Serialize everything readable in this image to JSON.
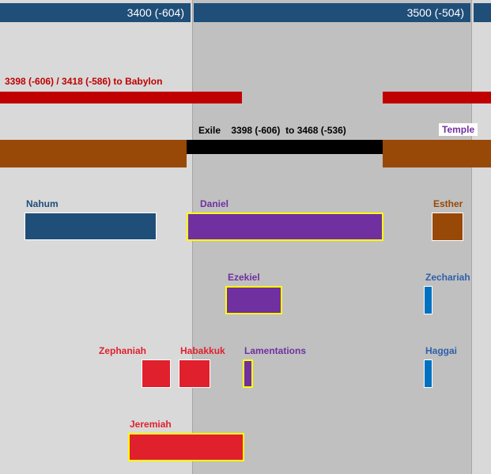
{
  "header": {
    "left_label": "3400 (-604)",
    "right_label": "3500 (-504)"
  },
  "events": {
    "babylon_label": "3398 (-606) / 3418 (-586) to Babylon",
    "exile_label": "Exile    3398 (-606)  to 3468 (-536)",
    "temple_label": "Temple"
  },
  "books": [
    {
      "name": "Nahum"
    },
    {
      "name": "Daniel"
    },
    {
      "name": "Esther"
    },
    {
      "name": "Ezekiel"
    },
    {
      "name": "Zechariah"
    },
    {
      "name": "Zephaniah"
    },
    {
      "name": "Habakkuk"
    },
    {
      "name": "Lamentations"
    },
    {
      "name": "Haggai"
    },
    {
      "name": "Jeremiah"
    }
  ],
  "colors": {
    "header": "#1f4e79",
    "babylon": "#c00000",
    "temple": "#984807",
    "exile": "#000000",
    "nahum": "#1f4e79",
    "purple": "#7030a0",
    "blue_book": "#0070c0",
    "red_book": "#e0202c",
    "highlight_border": "#ffff00",
    "band_light": "#d9d9d9",
    "band_dark": "#c0c0c0"
  }
}
